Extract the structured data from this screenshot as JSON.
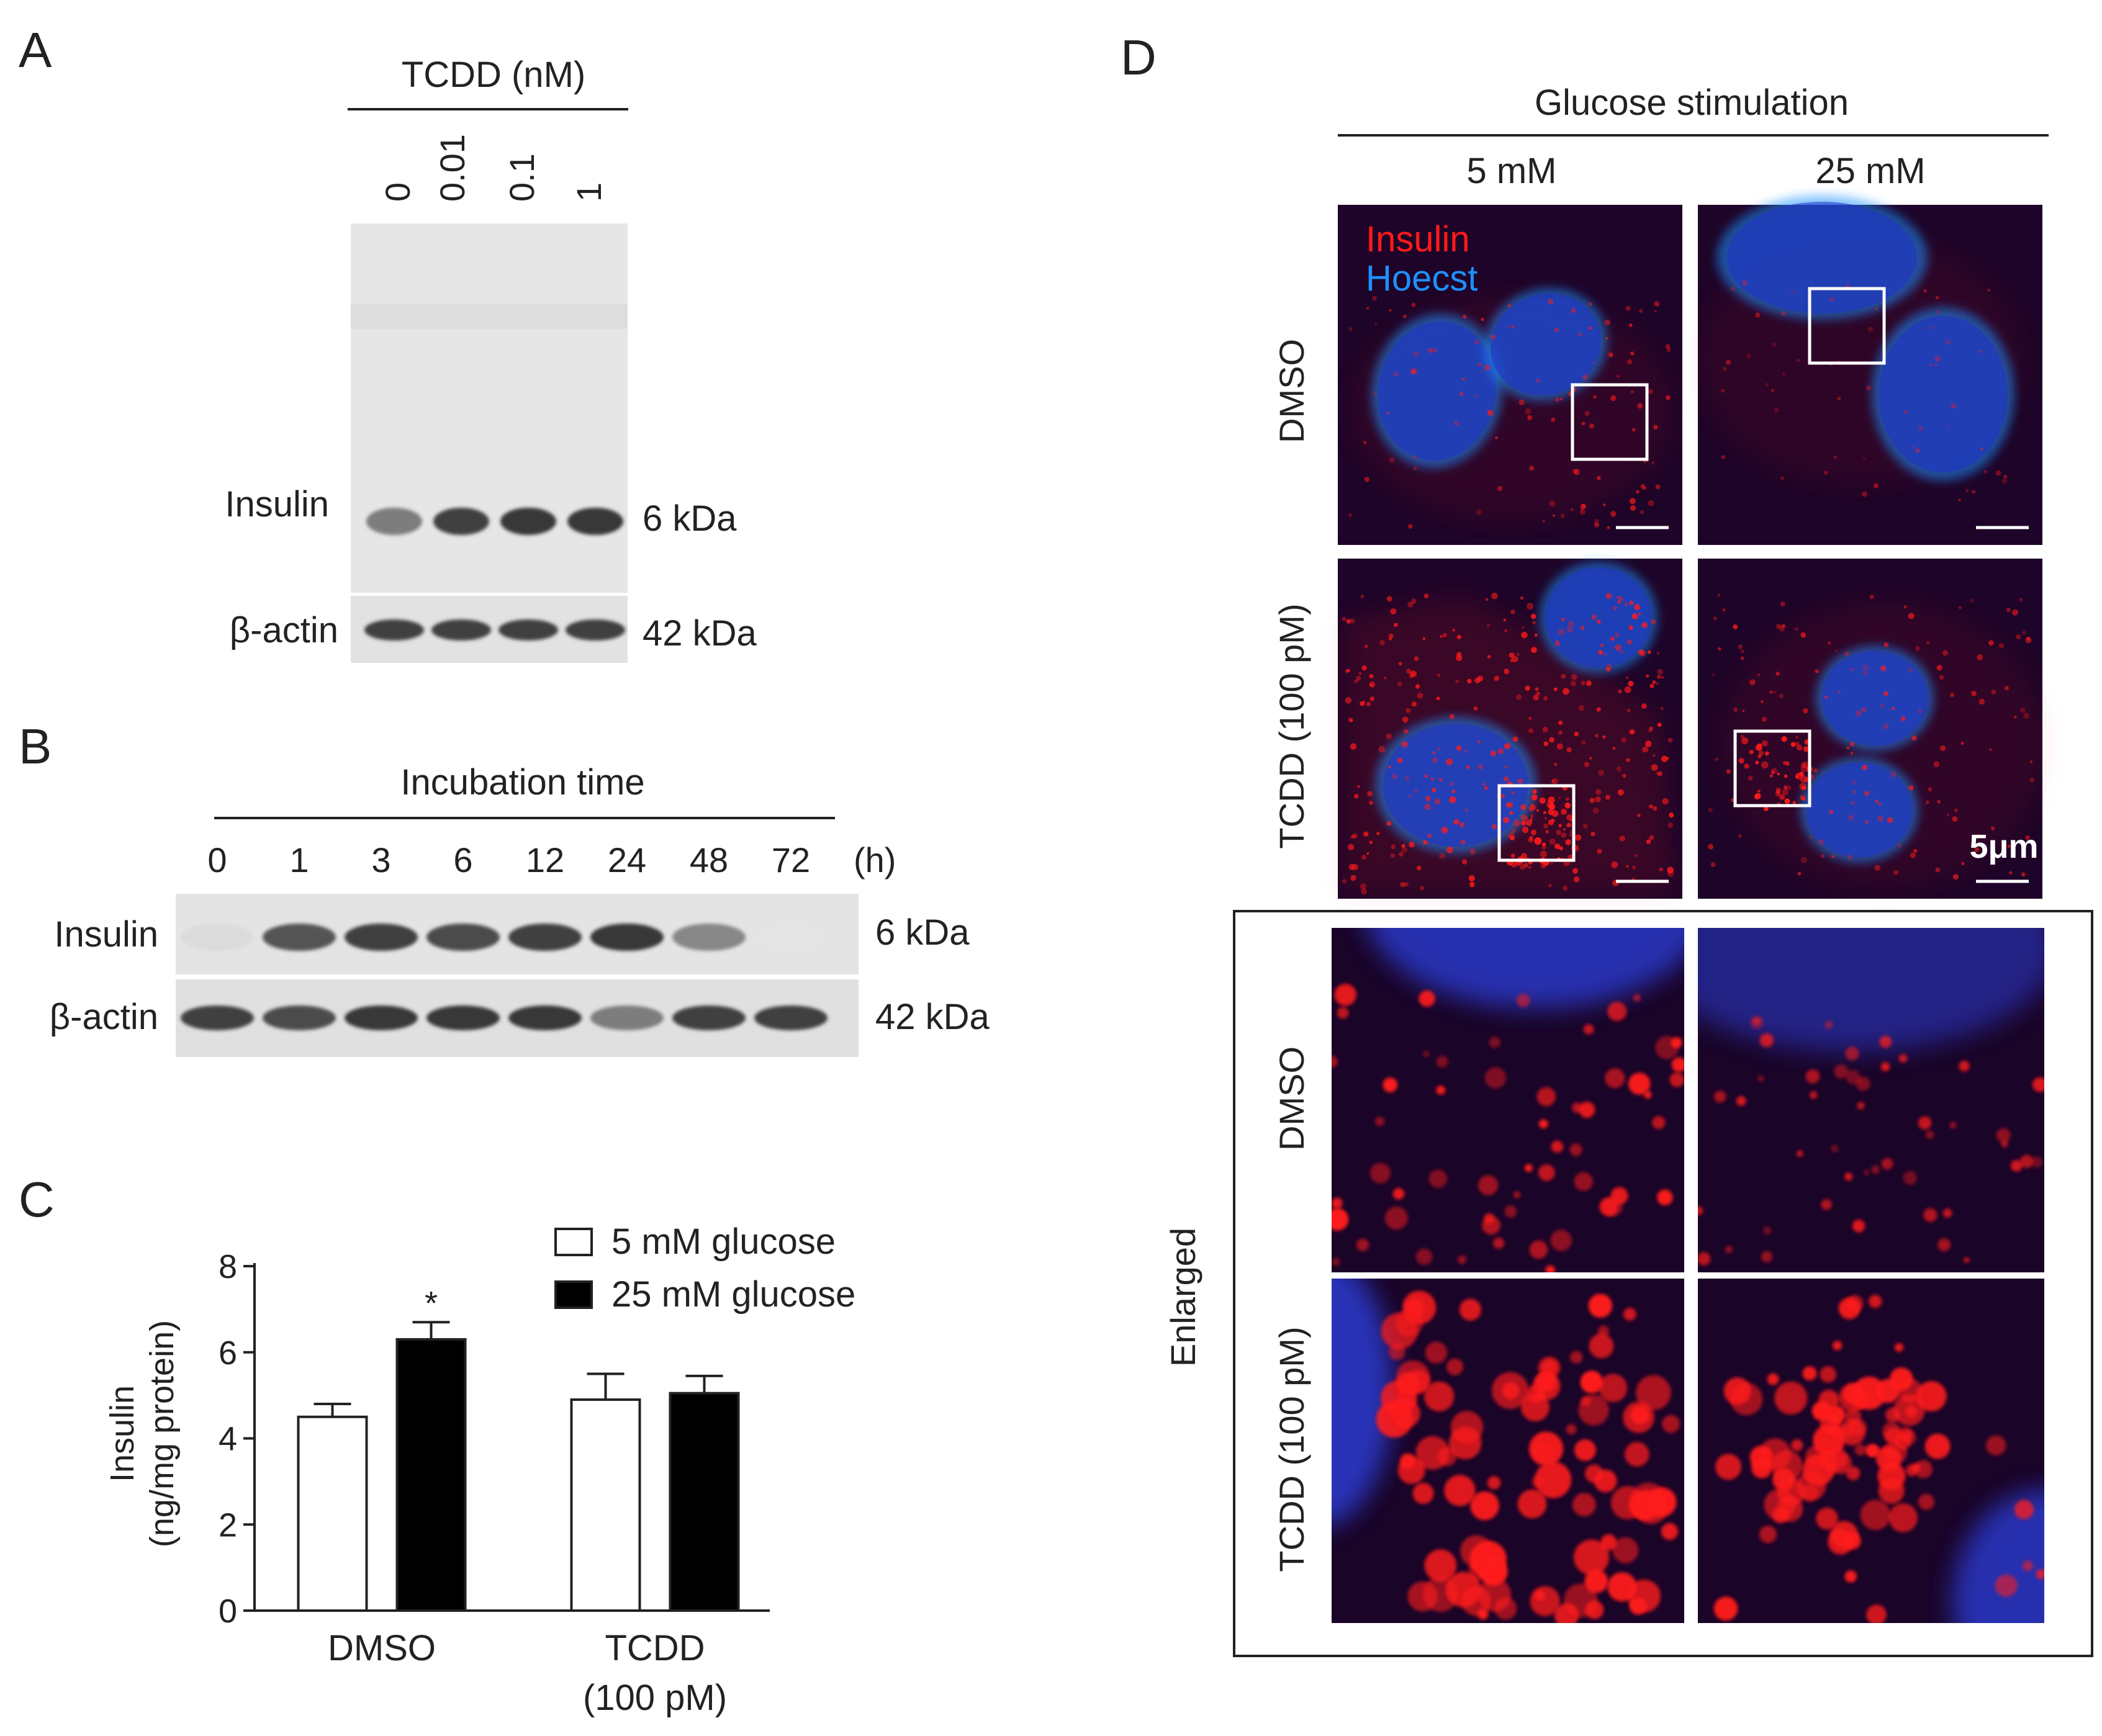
{
  "panels": {
    "a": "A",
    "b": "B",
    "c": "C",
    "d": "D"
  },
  "panel_a": {
    "treatment_label": "TCDD (nM)",
    "lanes": [
      "0",
      "0.01",
      "0.1",
      "1"
    ],
    "bands": [
      {
        "label": "Insulin",
        "size": "6 kDa",
        "intensity": [
          0.55,
          0.85,
          0.9,
          0.9
        ]
      },
      {
        "label": "β-actin",
        "size": "42 kDa",
        "intensity": [
          0.85,
          0.85,
          0.85,
          0.85
        ]
      }
    ]
  },
  "panel_b": {
    "title": "Incubation time",
    "unit": "(h)",
    "lanes": [
      "0",
      "1",
      "3",
      "6",
      "12",
      "24",
      "48",
      "72"
    ],
    "bands": [
      {
        "label": "Insulin",
        "size": "6 kDa",
        "intensity": [
          0.08,
          0.75,
          0.85,
          0.8,
          0.85,
          0.9,
          0.5,
          0.03
        ]
      },
      {
        "label": "β-actin",
        "size": "42 kDa",
        "intensity": [
          0.85,
          0.8,
          0.9,
          0.9,
          0.9,
          0.55,
          0.85,
          0.85
        ]
      }
    ]
  },
  "chart_data": {
    "type": "bar",
    "categories": [
      "DMSO",
      "TCDD (100 pM)"
    ],
    "category_lines": [
      [
        "DMSO"
      ],
      [
        "TCDD",
        "(100 pM)"
      ]
    ],
    "series": [
      {
        "name": "5 mM glucose",
        "values": [
          4.5,
          4.9
        ],
        "errors": [
          0.3,
          0.6
        ],
        "color": "#ffffff"
      },
      {
        "name": "25 mM glucose",
        "values": [
          6.3,
          5.05
        ],
        "errors": [
          0.4,
          0.4
        ],
        "color": "#000000"
      }
    ],
    "ylabel_lines": [
      "Insulin",
      "(ng/mg protein)"
    ],
    "ylim": [
      0,
      8
    ],
    "yticks": [
      0,
      2,
      4,
      6,
      8
    ],
    "annotations": [
      {
        "text": "*",
        "category": 0,
        "series": 1
      }
    ],
    "legend_position": "top-right",
    "grid": false
  },
  "panel_d": {
    "header": "Glucose stimulation",
    "columns": [
      "5 mM",
      "25 mM"
    ],
    "rows": [
      "DMSO",
      "TCDD (100 pM)"
    ],
    "stain_insulin": "Insulin",
    "stain_hoechst": "Hoecst",
    "scale_bar": "5μm",
    "enlarged_label": "Enlarged",
    "colors": {
      "insulin": "#ff1a1a",
      "hoechst": "#1e90ff"
    }
  }
}
